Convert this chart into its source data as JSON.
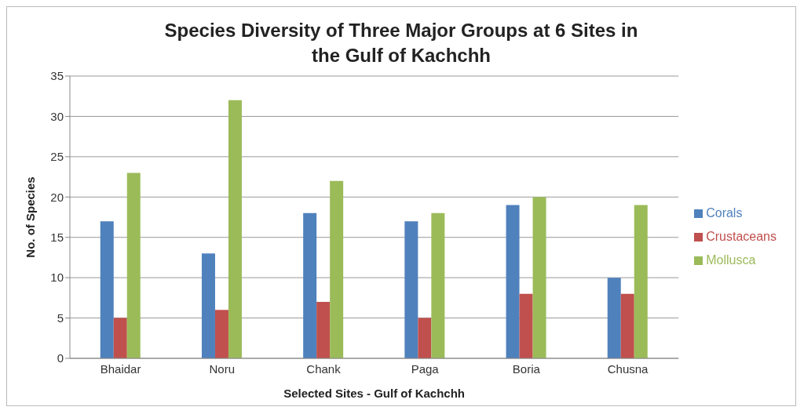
{
  "chart_data": {
    "type": "bar",
    "title": "Species Diversity of Three Major Groups at 6 Sites in the Gulf of Kachchh",
    "xlabel": "Selected Sites - Gulf of Kachchh",
    "ylabel": "No. of  Species",
    "categories": [
      "Bhaidar",
      "Noru",
      "Chank",
      "Paga",
      "Boria",
      "Chusna"
    ],
    "series": [
      {
        "name": "Corals",
        "color": "#4f81bd",
        "values": [
          17,
          13,
          18,
          17,
          19,
          10
        ]
      },
      {
        "name": "Crustaceans",
        "color": "#c0504d",
        "values": [
          5,
          6,
          7,
          5,
          8,
          8
        ]
      },
      {
        "name": "Mollusca",
        "color": "#9bbb59",
        "values": [
          23,
          32,
          22,
          18,
          20,
          19
        ]
      }
    ],
    "ylim": [
      0,
      35
    ],
    "yticks": [
      0,
      5,
      10,
      15,
      20,
      25,
      30,
      35
    ],
    "grid": "y",
    "legend": "right"
  }
}
